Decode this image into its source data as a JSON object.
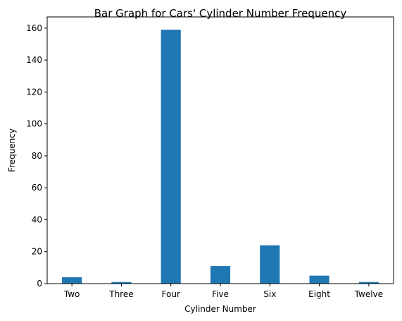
{
  "chart_data": {
    "type": "bar",
    "title": "Bar Graph for Cars' Cylinder Number Frequency",
    "xlabel": "Cylinder Number",
    "ylabel": "Frequency",
    "categories": [
      "Two",
      "Three",
      "Four",
      "Five",
      "Six",
      "Eight",
      "Twelve"
    ],
    "values": [
      4,
      1,
      159,
      11,
      24,
      5,
      1
    ],
    "ylim": [
      0,
      167
    ],
    "yticks": [
      0,
      20,
      40,
      60,
      80,
      100,
      120,
      140,
      160
    ],
    "grid": false,
    "bar_color": "#1f77b4"
  }
}
